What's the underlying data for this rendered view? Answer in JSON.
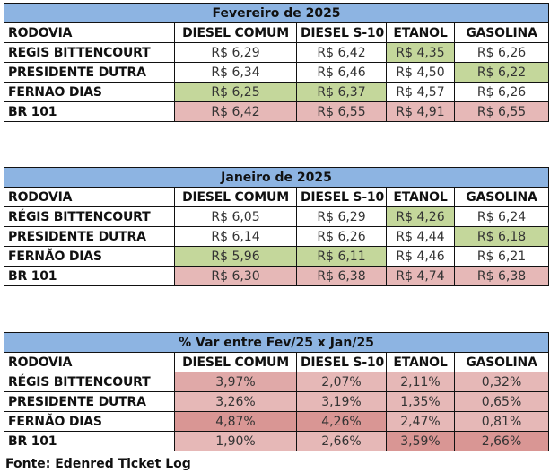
{
  "columns": [
    "RODOVIA",
    "DIESEL COMUM",
    "DIESEL S-10",
    "ETANOL",
    "GASOLINA"
  ],
  "colors": {
    "header": "#8db4e2",
    "green": "#c4d79b",
    "pink": "#e6b8b7",
    "pink_mid": "#e0a9a8",
    "pink_dark": "#d99694",
    "white": "#ffffff"
  },
  "tables": [
    {
      "title": "Fevereiro de 2025",
      "rows": [
        {
          "name": "REGIS BITTENCOURT",
          "values": [
            "R$ 6,29",
            "R$ 6,42",
            "R$ 4,35",
            "R$ 6,26"
          ],
          "fills": [
            "white",
            "white",
            "green",
            "white"
          ]
        },
        {
          "name": "PRESIDENTE DUTRA",
          "values": [
            "R$ 6,34",
            "R$ 6,46",
            "R$ 4,50",
            "R$ 6,22"
          ],
          "fills": [
            "white",
            "white",
            "white",
            "green"
          ]
        },
        {
          "name": "FERNAO DIAS",
          "values": [
            "R$ 6,25",
            "R$ 6,37",
            "R$ 4,57",
            "R$ 6,26"
          ],
          "fills": [
            "green",
            "green",
            "white",
            "white"
          ]
        },
        {
          "name": "BR 101",
          "values": [
            "R$ 6,42",
            "R$ 6,55",
            "R$ 4,91",
            "R$ 6,55"
          ],
          "fills": [
            "pink",
            "pink",
            "pink",
            "pink"
          ]
        }
      ]
    },
    {
      "title": "Janeiro de 2025",
      "rows": [
        {
          "name": "RÉGIS BITTENCOURT",
          "values": [
            "R$ 6,05",
            "R$ 6,29",
            "R$ 4,26",
            "R$ 6,24"
          ],
          "fills": [
            "white",
            "white",
            "green",
            "white"
          ]
        },
        {
          "name": "PRESIDENTE DUTRA",
          "values": [
            "R$ 6,14",
            "R$ 6,26",
            "R$ 4,44",
            "R$ 6,18"
          ],
          "fills": [
            "white",
            "white",
            "white",
            "green"
          ]
        },
        {
          "name": "FERNÃO DIAS",
          "values": [
            "R$ 5,96",
            "R$ 6,11",
            "R$ 4,46",
            "R$ 6,21"
          ],
          "fills": [
            "green",
            "green",
            "white",
            "white"
          ]
        },
        {
          "name": "BR 101",
          "values": [
            "R$ 6,30",
            "R$ 6,38",
            "R$ 4,74",
            "R$ 6,38"
          ],
          "fills": [
            "pink",
            "pink",
            "pink",
            "pink"
          ]
        }
      ]
    },
    {
      "title": "% Var entre Fev/25 x Jan/25",
      "rows": [
        {
          "name": "RÉGIS BITTENCOURT",
          "values": [
            "3,97%",
            "2,07%",
            "2,11%",
            "0,32%"
          ],
          "fills": [
            "pink_mid",
            "pink",
            "pink",
            "pink"
          ]
        },
        {
          "name": "PRESIDENTE DUTRA",
          "values": [
            "3,26%",
            "3,19%",
            "1,35%",
            "0,65%"
          ],
          "fills": [
            "pink",
            "pink",
            "pink",
            "pink"
          ]
        },
        {
          "name": "FERNÃO DIAS",
          "values": [
            "4,87%",
            "4,26%",
            "2,47%",
            "0,81%"
          ],
          "fills": [
            "pink_dark",
            "pink_dark",
            "pink",
            "pink"
          ]
        },
        {
          "name": "BR 101",
          "values": [
            "1,90%",
            "2,66%",
            "3,59%",
            "2,66%"
          ],
          "fills": [
            "pink",
            "pink",
            "pink_dark",
            "pink_dark"
          ]
        }
      ]
    }
  ],
  "source": "Fonte: Edenred Ticket Log"
}
